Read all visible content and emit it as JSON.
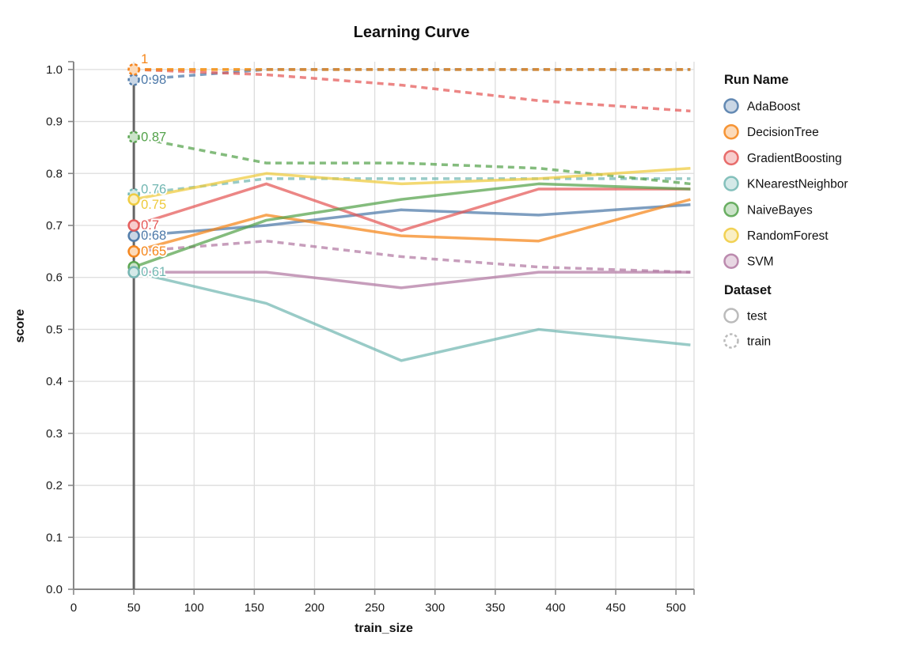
{
  "title": "Learning Curve",
  "chart_data": {
    "type": "line",
    "title": "Learning Curve",
    "xlabel": "train_size",
    "ylabel": "score",
    "xlim": [
      0,
      515
    ],
    "ylim": [
      0,
      1.015
    ],
    "x_ticks": [
      0,
      50,
      100,
      150,
      200,
      250,
      300,
      350,
      400,
      450,
      500
    ],
    "x_tick_labels": [
      "0",
      "50",
      "100",
      "150",
      "200",
      "250",
      "300",
      "350",
      "400",
      "450",
      "500"
    ],
    "y_ticks": [
      0,
      0.1,
      0.2,
      0.3,
      0.4,
      0.5,
      0.6,
      0.7,
      0.8,
      0.9,
      1.0
    ],
    "y_tick_labels": [
      "0.0",
      "0.1",
      "0.2",
      "0.3",
      "0.4",
      "0.5",
      "0.6",
      "0.7",
      "0.8",
      "0.9",
      "1.0"
    ],
    "grid": true,
    "rule_x": 50,
    "x": [
      50,
      160,
      272,
      386,
      512
    ],
    "runs": [
      {
        "label": "AdaBoost",
        "color": "#4c78a8"
      },
      {
        "label": "DecisionTree",
        "color": "#f58518"
      },
      {
        "label": "GradientBoosting",
        "color": "#e45756"
      },
      {
        "label": "KNearestNeighbor",
        "color": "#72b7b2"
      },
      {
        "label": "NaiveBayes",
        "color": "#54a24b"
      },
      {
        "label": "RandomForest",
        "color": "#eeca3b"
      },
      {
        "label": "SVM",
        "color": "#b279a2"
      }
    ],
    "series": [
      {
        "run": "RandomForest",
        "dataset": "train",
        "values": [
          1.0,
          1.0,
          1.0,
          1.0,
          1.0
        ]
      },
      {
        "run": "AdaBoost",
        "dataset": "train",
        "values": [
          0.98,
          1.0,
          1.0,
          1.0,
          1.0
        ]
      },
      {
        "run": "GradientBoosting",
        "dataset": "train",
        "values": [
          1.0,
          0.99,
          0.97,
          0.94,
          0.92
        ]
      },
      {
        "run": "KNearestNeighbor",
        "dataset": "train",
        "values": [
          0.76,
          0.79,
          0.79,
          0.79,
          0.79
        ]
      },
      {
        "run": "NaiveBayes",
        "dataset": "train",
        "values": [
          0.87,
          0.82,
          0.82,
          0.81,
          0.78
        ]
      },
      {
        "run": "SVM",
        "dataset": "train",
        "values": [
          0.65,
          0.67,
          0.64,
          0.62,
          0.61
        ]
      },
      {
        "run": "DecisionTree",
        "dataset": "train",
        "values": [
          1.0,
          1.0,
          1.0,
          1.0,
          1.0
        ]
      },
      {
        "run": "AdaBoost",
        "dataset": "test",
        "values": [
          0.68,
          0.7,
          0.73,
          0.72,
          0.74
        ]
      },
      {
        "run": "DecisionTree",
        "dataset": "test",
        "values": [
          0.65,
          0.72,
          0.68,
          0.67,
          0.75
        ]
      },
      {
        "run": "GradientBoosting",
        "dataset": "test",
        "values": [
          0.7,
          0.78,
          0.69,
          0.77,
          0.77
        ]
      },
      {
        "run": "NaiveBayes",
        "dataset": "test",
        "values": [
          0.62,
          0.71,
          0.75,
          0.78,
          0.77
        ]
      },
      {
        "run": "RandomForest",
        "dataset": "test",
        "values": [
          0.75,
          0.8,
          0.78,
          0.79,
          0.81
        ]
      },
      {
        "run": "SVM",
        "dataset": "test",
        "values": [
          0.61,
          0.61,
          0.58,
          0.61,
          0.61
        ]
      },
      {
        "run": "KNearestNeighbor",
        "dataset": "test",
        "values": [
          0.61,
          0.55,
          0.44,
          0.5,
          0.47
        ]
      }
    ],
    "point_labels": [
      {
        "text": "1",
        "value": 1.0,
        "run": "DecisionTree",
        "dy": -13
      },
      {
        "text": "0.98",
        "value": 0.98,
        "run": "AdaBoost",
        "dy": 0
      },
      {
        "text": "0.87",
        "value": 0.87,
        "run": "NaiveBayes",
        "dy": 0
      },
      {
        "text": "0.76",
        "value": 0.76,
        "run": "KNearestNeighbor",
        "dy": -6
      },
      {
        "text": "0.75",
        "value": 0.75,
        "run": "RandomForest",
        "dy": 7
      },
      {
        "text": "0.7",
        "value": 0.7,
        "run": "GradientBoosting",
        "dy": 0
      },
      {
        "text": "0.68",
        "value": 0.68,
        "run": "AdaBoost",
        "dy": 0
      },
      {
        "text": "0.65",
        "value": 0.65,
        "run": "DecisionTree",
        "dy": 0
      },
      {
        "text": "0.61",
        "value": 0.61,
        "run": "KNearestNeighbor",
        "dy": 0
      }
    ],
    "legend": {
      "run_title": "Run Name",
      "dataset_title": "Dataset",
      "datasets": [
        {
          "label": "test",
          "dashed": false
        },
        {
          "label": "train",
          "dashed": true
        }
      ]
    },
    "colors": {
      "grid": "#dddddd",
      "axis": "#888888",
      "rule": "#666666",
      "tick_text": "#1a1a1a",
      "legend_symbol": "#bbbbbb"
    }
  }
}
